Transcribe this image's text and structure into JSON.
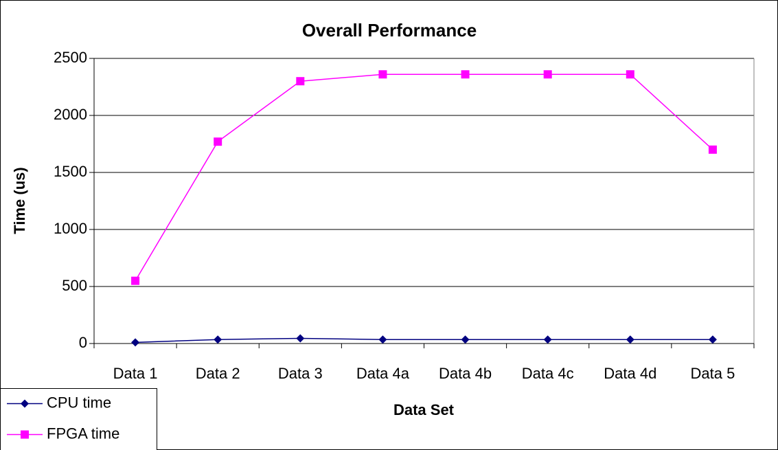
{
  "chart_data": {
    "type": "line",
    "title": "Overall Performance",
    "x_label": "Data Set",
    "y_label": "Time (us)",
    "categories": [
      "Data 1",
      "Data 2",
      "Data 3",
      "Data 4a",
      "Data 4b",
      "Data 4c",
      "Data 4d",
      "Data 5"
    ],
    "series": [
      {
        "name": "CPU time",
        "color": "#000080",
        "marker": "diamond",
        "values": [
          10,
          35,
          45,
          35,
          35,
          35,
          35,
          35
        ]
      },
      {
        "name": "FPGA time",
        "color": "#ff00ff",
        "marker": "square",
        "values": [
          550,
          1770,
          2300,
          2360,
          2360,
          2360,
          2360,
          1700
        ]
      }
    ],
    "ylim": [
      0,
      2500
    ],
    "yticks": [
      0,
      500,
      1000,
      1500,
      2000,
      2500
    ],
    "grid": true,
    "legend": "lower left"
  }
}
